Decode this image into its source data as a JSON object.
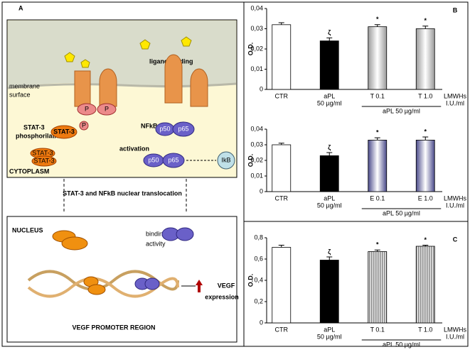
{
  "diagram": {
    "label": "A",
    "ligand_binding": "ligand binding",
    "membrane": [
      "membrane",
      "surface"
    ],
    "p_left": "P",
    "p_right": "P",
    "stat3_phos": [
      "STAT-3",
      "phosphorilation"
    ],
    "stat3": "STAT-3",
    "p_small": "P",
    "activation": "activation",
    "nfkb": "NFkB",
    "p50_a": "p50",
    "p65_a": "p65",
    "p50_b": "p50",
    "p65_b": "p65",
    "ikb": "IkB",
    "stat3_dimer": [
      "STAT-3",
      "STAT-3"
    ],
    "cytoplasm": "CYTOPLASM",
    "translocation": "STAT-3 and NFkB nuclear translocation",
    "nucleus": "NUCLEUS",
    "binding_activity": [
      "binding",
      "activity"
    ],
    "vegf_expression": [
      "VEGF",
      "expression"
    ],
    "promoter": "VEGF PROMOTER REGION"
  },
  "chart_data": [
    {
      "type": "bar",
      "panel_label": "B",
      "ylabel": "O.D.",
      "categories": [
        "CTR",
        "aPL",
        "T 0.1",
        "T 1.0"
      ],
      "subcategories": [
        null,
        "50 µg/ml",
        null,
        null
      ],
      "group_label": "aPL 50 µg/ml",
      "x_note": [
        "LMWHs",
        "I.U./ml"
      ],
      "values": [
        0.032,
        0.024,
        0.031,
        0.03
      ],
      "errors": [
        0.001,
        0.0015,
        0.001,
        0.0013
      ],
      "colors": [
        "#ffffff",
        "#000000",
        "#9a9a9a",
        "#9a9a9a"
      ],
      "bar_styles": [
        "solid",
        "solid",
        "gradient",
        "gradient"
      ],
      "markers": [
        null,
        "ζ",
        "*",
        "*"
      ],
      "ylim": [
        0,
        0.04
      ],
      "yticks": [
        0,
        {
          "value": 0.01,
          "label": "0,01"
        },
        {
          "value": 0.02,
          "label": "0,02"
        },
        {
          "value": 0.03,
          "label": "0,03"
        },
        {
          "value": 0.04,
          "label": "0,04"
        }
      ]
    },
    {
      "type": "bar",
      "ylabel": "O.D.",
      "categories": [
        "CTR",
        "aPL",
        "E 0.1",
        "E 1.0"
      ],
      "subcategories": [
        null,
        "50 µg/ml",
        null,
        null
      ],
      "group_label": "aPL 50 µg/ml",
      "x_note": [
        "LMWHs",
        "I.U./ml"
      ],
      "values": [
        0.03,
        0.023,
        0.033,
        0.033
      ],
      "errors": [
        0.001,
        0.002,
        0.0015,
        0.002
      ],
      "colors": [
        "#ffffff",
        "#000000",
        "#4a4a8a",
        "#4a4a8a"
      ],
      "bar_styles": [
        "solid",
        "solid",
        "gradient",
        "gradient"
      ],
      "markers": [
        null,
        "ζ",
        "*",
        "*"
      ],
      "ylim": [
        0,
        0.04
      ],
      "yticks": [
        0,
        {
          "value": 0.01,
          "label": "0,01"
        },
        {
          "value": 0.02,
          "label": "0,02"
        },
        {
          "value": 0.03,
          "label": "0,03"
        },
        {
          "value": 0.04,
          "label": "0,04"
        }
      ]
    },
    {
      "type": "bar",
      "panel_label": "C",
      "ylabel": "O.D.",
      "categories": [
        "CTR",
        "aPL",
        "T 0.1",
        "T 1.0"
      ],
      "subcategories": [
        null,
        "50 µg/ml",
        null,
        null
      ],
      "group_label": "aPL 50 µg/ml",
      "x_note": [
        "LMWHs",
        "I.U./ml"
      ],
      "values": [
        0.71,
        0.59,
        0.67,
        0.72
      ],
      "errors": [
        0.02,
        0.03,
        0.015,
        0.01
      ],
      "colors": [
        "#ffffff",
        "#000000",
        "#8a8a8a",
        "#8a8a8a"
      ],
      "bar_styles": [
        "solid",
        "solid",
        "striped",
        "striped"
      ],
      "markers": [
        null,
        "ζ",
        "*",
        "*"
      ],
      "ylim": [
        0,
        0.8
      ],
      "yticks": [
        0,
        {
          "value": 0.2,
          "label": "0,2"
        },
        {
          "value": 0.4,
          "label": "0,4"
        },
        {
          "value": 0.6,
          "label": "0,6"
        },
        {
          "value": 0.8,
          "label": "0,8"
        }
      ]
    }
  ]
}
